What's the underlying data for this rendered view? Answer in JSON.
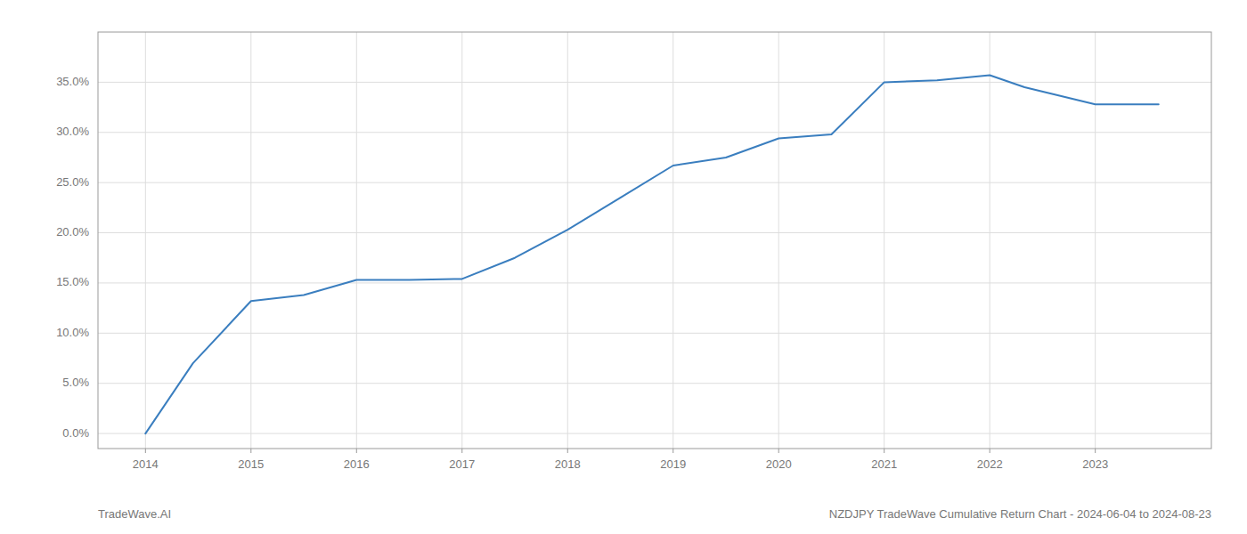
{
  "chart_data": {
    "type": "line",
    "title": "NZDJPY TradeWave Cumulative Return Chart - 2024-06-04 to 2024-08-23",
    "annotations": [
      "TradeWave.AI"
    ],
    "x": [
      2014.0,
      2014.45,
      2015.0,
      2015.5,
      2016.0,
      2016.5,
      2017.0,
      2017.5,
      2018.0,
      2018.5,
      2019.0,
      2019.5,
      2020.0,
      2020.5,
      2021.0,
      2021.5,
      2022.0,
      2022.33,
      2023.0,
      2023.6
    ],
    "values": [
      0.0,
      7.0,
      13.2,
      13.8,
      15.3,
      15.3,
      15.4,
      17.5,
      20.3,
      23.5,
      26.7,
      27.5,
      29.4,
      29.8,
      35.0,
      35.2,
      35.7,
      34.5,
      32.8,
      32.8
    ],
    "color": "#3a7ebf",
    "xlim": [
      2013.55,
      2024.1
    ],
    "ylim": [
      -1.5,
      40.0
    ],
    "xticks": [
      2014,
      2015,
      2016,
      2017,
      2018,
      2019,
      2020,
      2021,
      2022,
      2023
    ],
    "yticks": [
      {
        "value": 0.0,
        "label": "0.0%"
      },
      {
        "value": 5.0,
        "label": "5.0%"
      },
      {
        "value": 10.0,
        "label": "10.0%"
      },
      {
        "value": 15.0,
        "label": "15.0%"
      },
      {
        "value": 20.0,
        "label": "20.0%"
      },
      {
        "value": 25.0,
        "label": "25.0%"
      },
      {
        "value": 30.0,
        "label": "30.0%"
      },
      {
        "value": 35.0,
        "label": "35.0%"
      }
    ],
    "grid": true
  }
}
